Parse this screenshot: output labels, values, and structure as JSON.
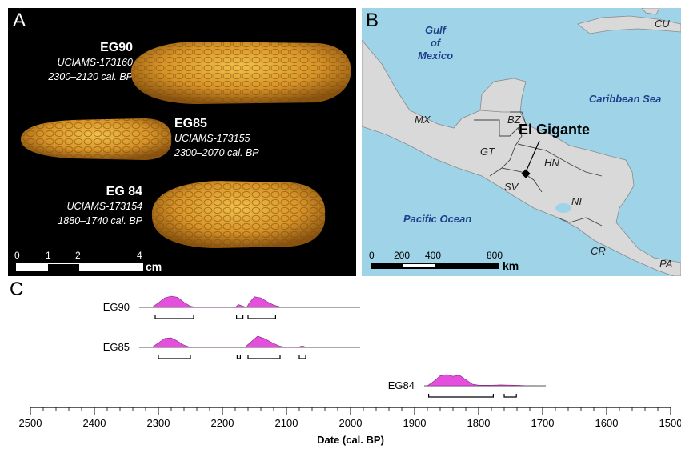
{
  "panel_a": {
    "letter": "A",
    "specimens": [
      {
        "name": "EG90",
        "lab_id": "UCIAMS-173160",
        "date_range": "2300–2120 cal. BP"
      },
      {
        "name": "EG85",
        "lab_id": "UCIAMS-173155",
        "date_range": "2300–2070 cal. BP"
      },
      {
        "name": "EG 84",
        "lab_id": "UCIAMS-173154",
        "date_range": "1880–1740 cal. BP"
      }
    ],
    "scale": {
      "ticks": [
        "0",
        "1",
        "2",
        "4"
      ],
      "unit": "cm"
    }
  },
  "panel_b": {
    "letter": "B",
    "water_labels": [
      "Gulf of Mexico",
      "Caribbean Sea",
      "Pacific Ocean"
    ],
    "gulf_lines": [
      "Gulf",
      "of",
      "Mexico"
    ],
    "countries": [
      "MX",
      "BZ",
      "GT",
      "HN",
      "SV",
      "NI",
      "CR",
      "PA",
      "CU"
    ],
    "site": "El Gigante",
    "scale": {
      "ticks": [
        "0",
        "200",
        "400",
        "800"
      ],
      "unit": "km"
    },
    "colors": {
      "sea": "#9fd3e8",
      "land": "#d9d9d9"
    }
  },
  "panel_c": {
    "letter": "C"
  },
  "chart_data": {
    "type": "area",
    "xlabel": "Date (cal. BP)",
    "xlim": [
      2500,
      1500
    ],
    "x_reversed": true,
    "xticks": [
      2500,
      2400,
      2300,
      2200,
      2100,
      2000,
      1900,
      1800,
      1700,
      1600,
      1500
    ],
    "series": [
      {
        "name": "EG90",
        "baseline_range": [
          2330,
          1985
        ],
        "density": [
          [
            2310,
            0
          ],
          [
            2300,
            0.4
          ],
          [
            2290,
            0.85
          ],
          [
            2280,
            1.0
          ],
          [
            2270,
            0.9
          ],
          [
            2260,
            0.45
          ],
          [
            2250,
            0.1
          ],
          [
            2240,
            0
          ],
          [
            2180,
            0
          ],
          [
            2175,
            0.25
          ],
          [
            2170,
            0.15
          ],
          [
            2162,
            0
          ],
          [
            2158,
            0.4
          ],
          [
            2150,
            0.95
          ],
          [
            2140,
            0.85
          ],
          [
            2130,
            0.5
          ],
          [
            2120,
            0.2
          ],
          [
            2110,
            0.05
          ],
          [
            2100,
            0
          ]
        ],
        "ranges": [
          [
            2305,
            2245
          ],
          [
            2178,
            2168
          ],
          [
            2160,
            2117
          ]
        ]
      },
      {
        "name": "EG85",
        "baseline_range": [
          2330,
          1985
        ],
        "density": [
          [
            2310,
            0
          ],
          [
            2300,
            0.4
          ],
          [
            2290,
            0.8
          ],
          [
            2280,
            0.85
          ],
          [
            2270,
            0.55
          ],
          [
            2260,
            0.2
          ],
          [
            2250,
            0
          ],
          [
            2165,
            0
          ],
          [
            2155,
            0.5
          ],
          [
            2145,
            1.0
          ],
          [
            2135,
            0.8
          ],
          [
            2120,
            0.35
          ],
          [
            2110,
            0.1
          ],
          [
            2100,
            0
          ],
          [
            2085,
            0
          ],
          [
            2075,
            0.12
          ],
          [
            2068,
            0
          ]
        ],
        "ranges": [
          [
            2300,
            2250
          ],
          [
            2177,
            2172
          ],
          [
            2160,
            2110
          ],
          [
            2080,
            2070
          ]
        ]
      },
      {
        "name": "EG84",
        "baseline_range": [
          1885,
          1695
        ],
        "density": [
          [
            1880,
            0
          ],
          [
            1870,
            0.4
          ],
          [
            1860,
            0.9
          ],
          [
            1850,
            1.0
          ],
          [
            1840,
            0.85
          ],
          [
            1830,
            0.95
          ],
          [
            1820,
            0.55
          ],
          [
            1810,
            0.15
          ],
          [
            1800,
            0.05
          ],
          [
            1780,
            0.05
          ],
          [
            1765,
            0.08
          ],
          [
            1750,
            0.06
          ],
          [
            1735,
            0.03
          ],
          [
            1720,
            0
          ]
        ],
        "ranges": [
          [
            1878,
            1777
          ],
          [
            1760,
            1741
          ]
        ]
      }
    ],
    "colors": {
      "fill": "#e44fdd",
      "line": "#000000"
    }
  }
}
